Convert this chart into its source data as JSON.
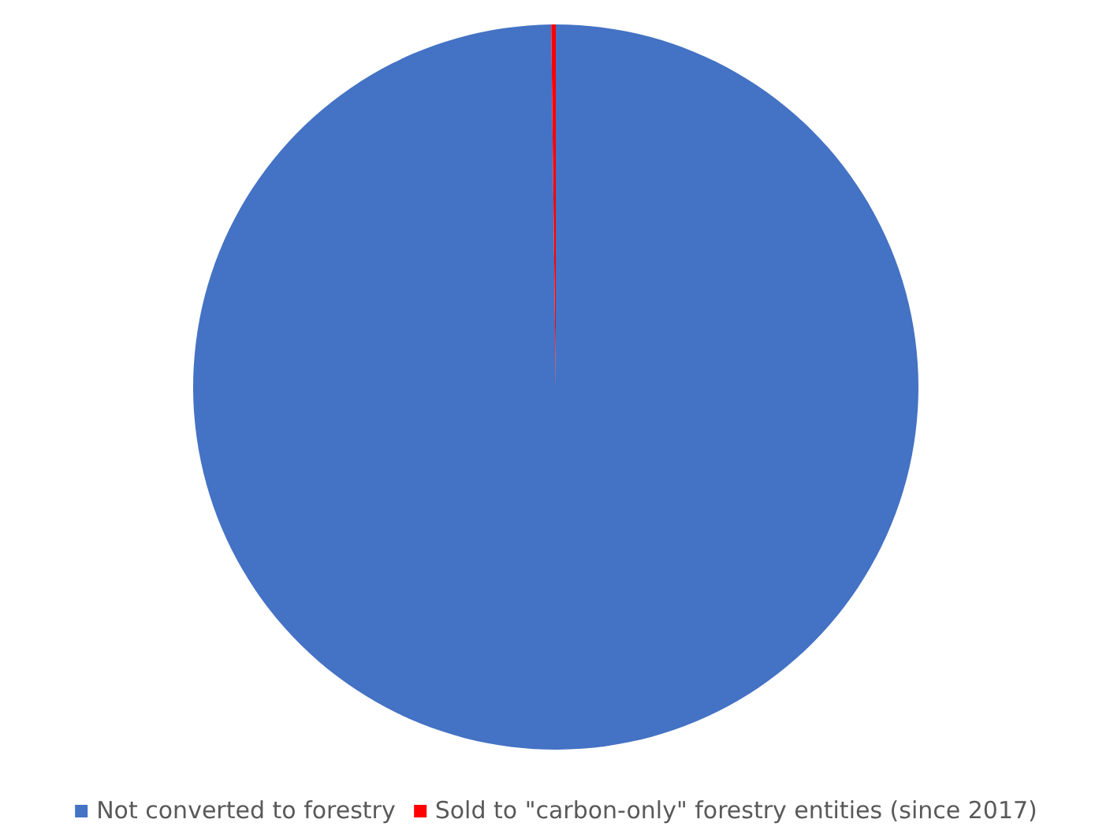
{
  "chart_data": {
    "type": "pie",
    "categories": [
      "Not converted to forestry",
      "Sold to \"carbon-only\" forestry entities (since 2017)"
    ],
    "values": [
      99.8,
      0.2
    ],
    "colors": [
      "#4472c4",
      "#ff0000"
    ],
    "legend": "bottom"
  }
}
